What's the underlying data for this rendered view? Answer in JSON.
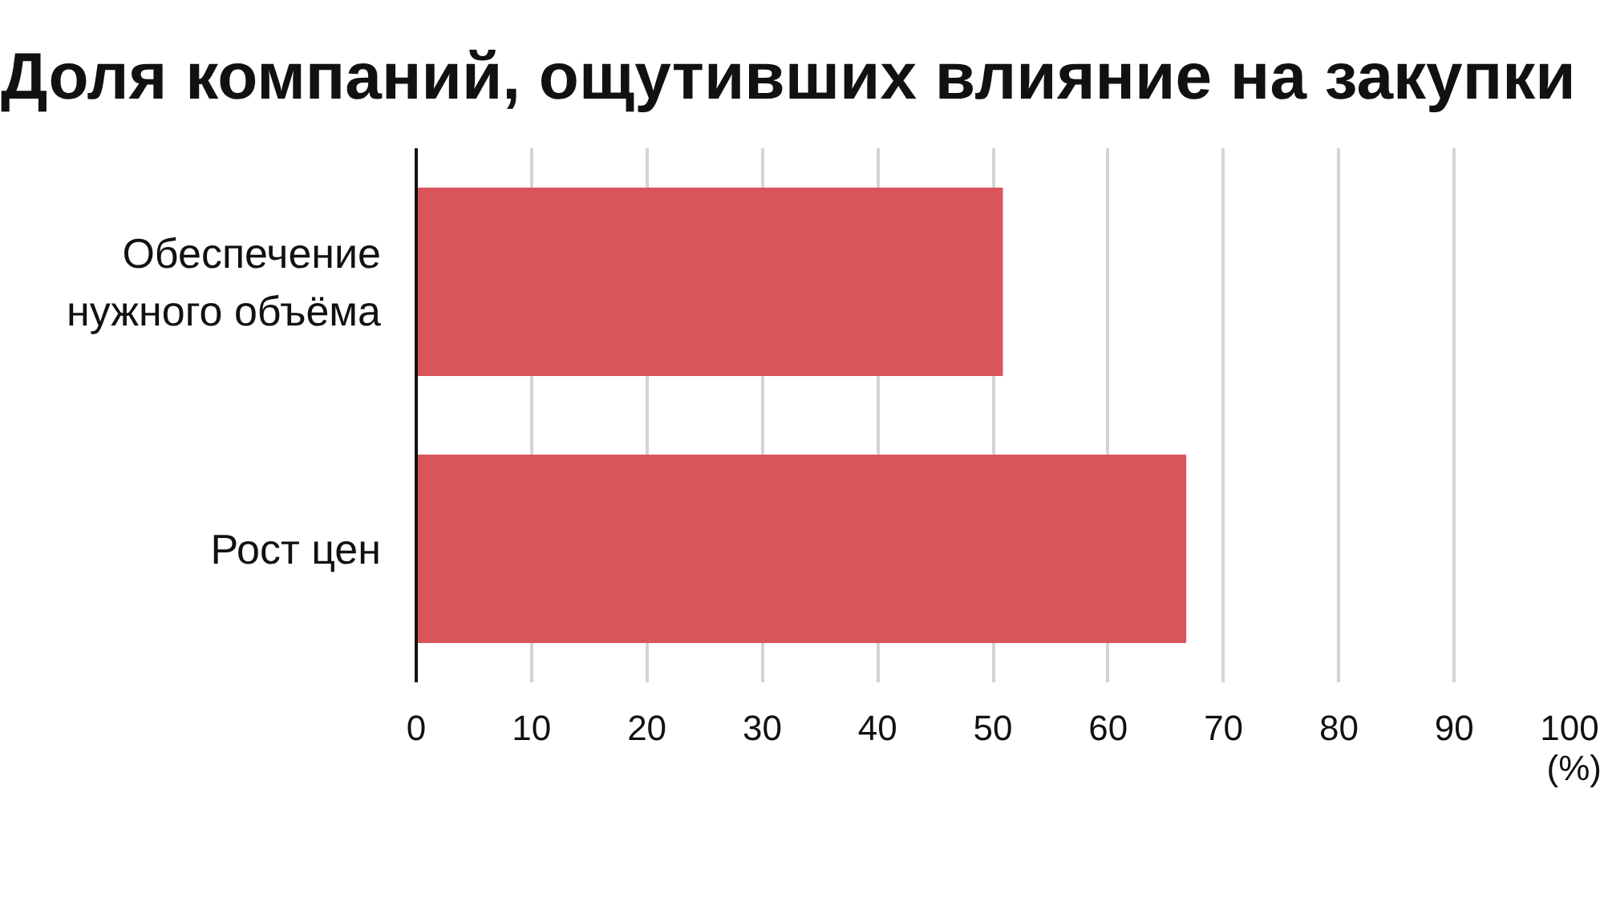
{
  "chart_data": {
    "type": "bar",
    "orientation": "horizontal",
    "title": "Доля компаний, ощутивших влияние на закупки",
    "xlabel": "(%)",
    "categories": [
      "Обеспечение\nнужного объёма",
      "Рост цен"
    ],
    "values": [
      50.8,
      66.7
    ],
    "color": "#d9555a",
    "xlim": [
      0,
      100
    ],
    "xticks": [
      0,
      10,
      20,
      30,
      40,
      50,
      60,
      70,
      80,
      90,
      100
    ],
    "grid": "x"
  }
}
